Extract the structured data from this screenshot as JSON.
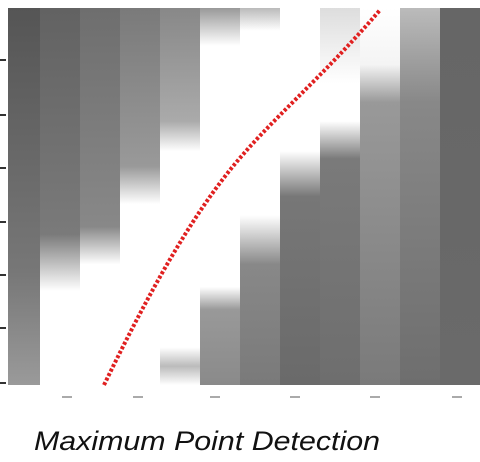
{
  "caption": "Maximum Point Detection"
}
